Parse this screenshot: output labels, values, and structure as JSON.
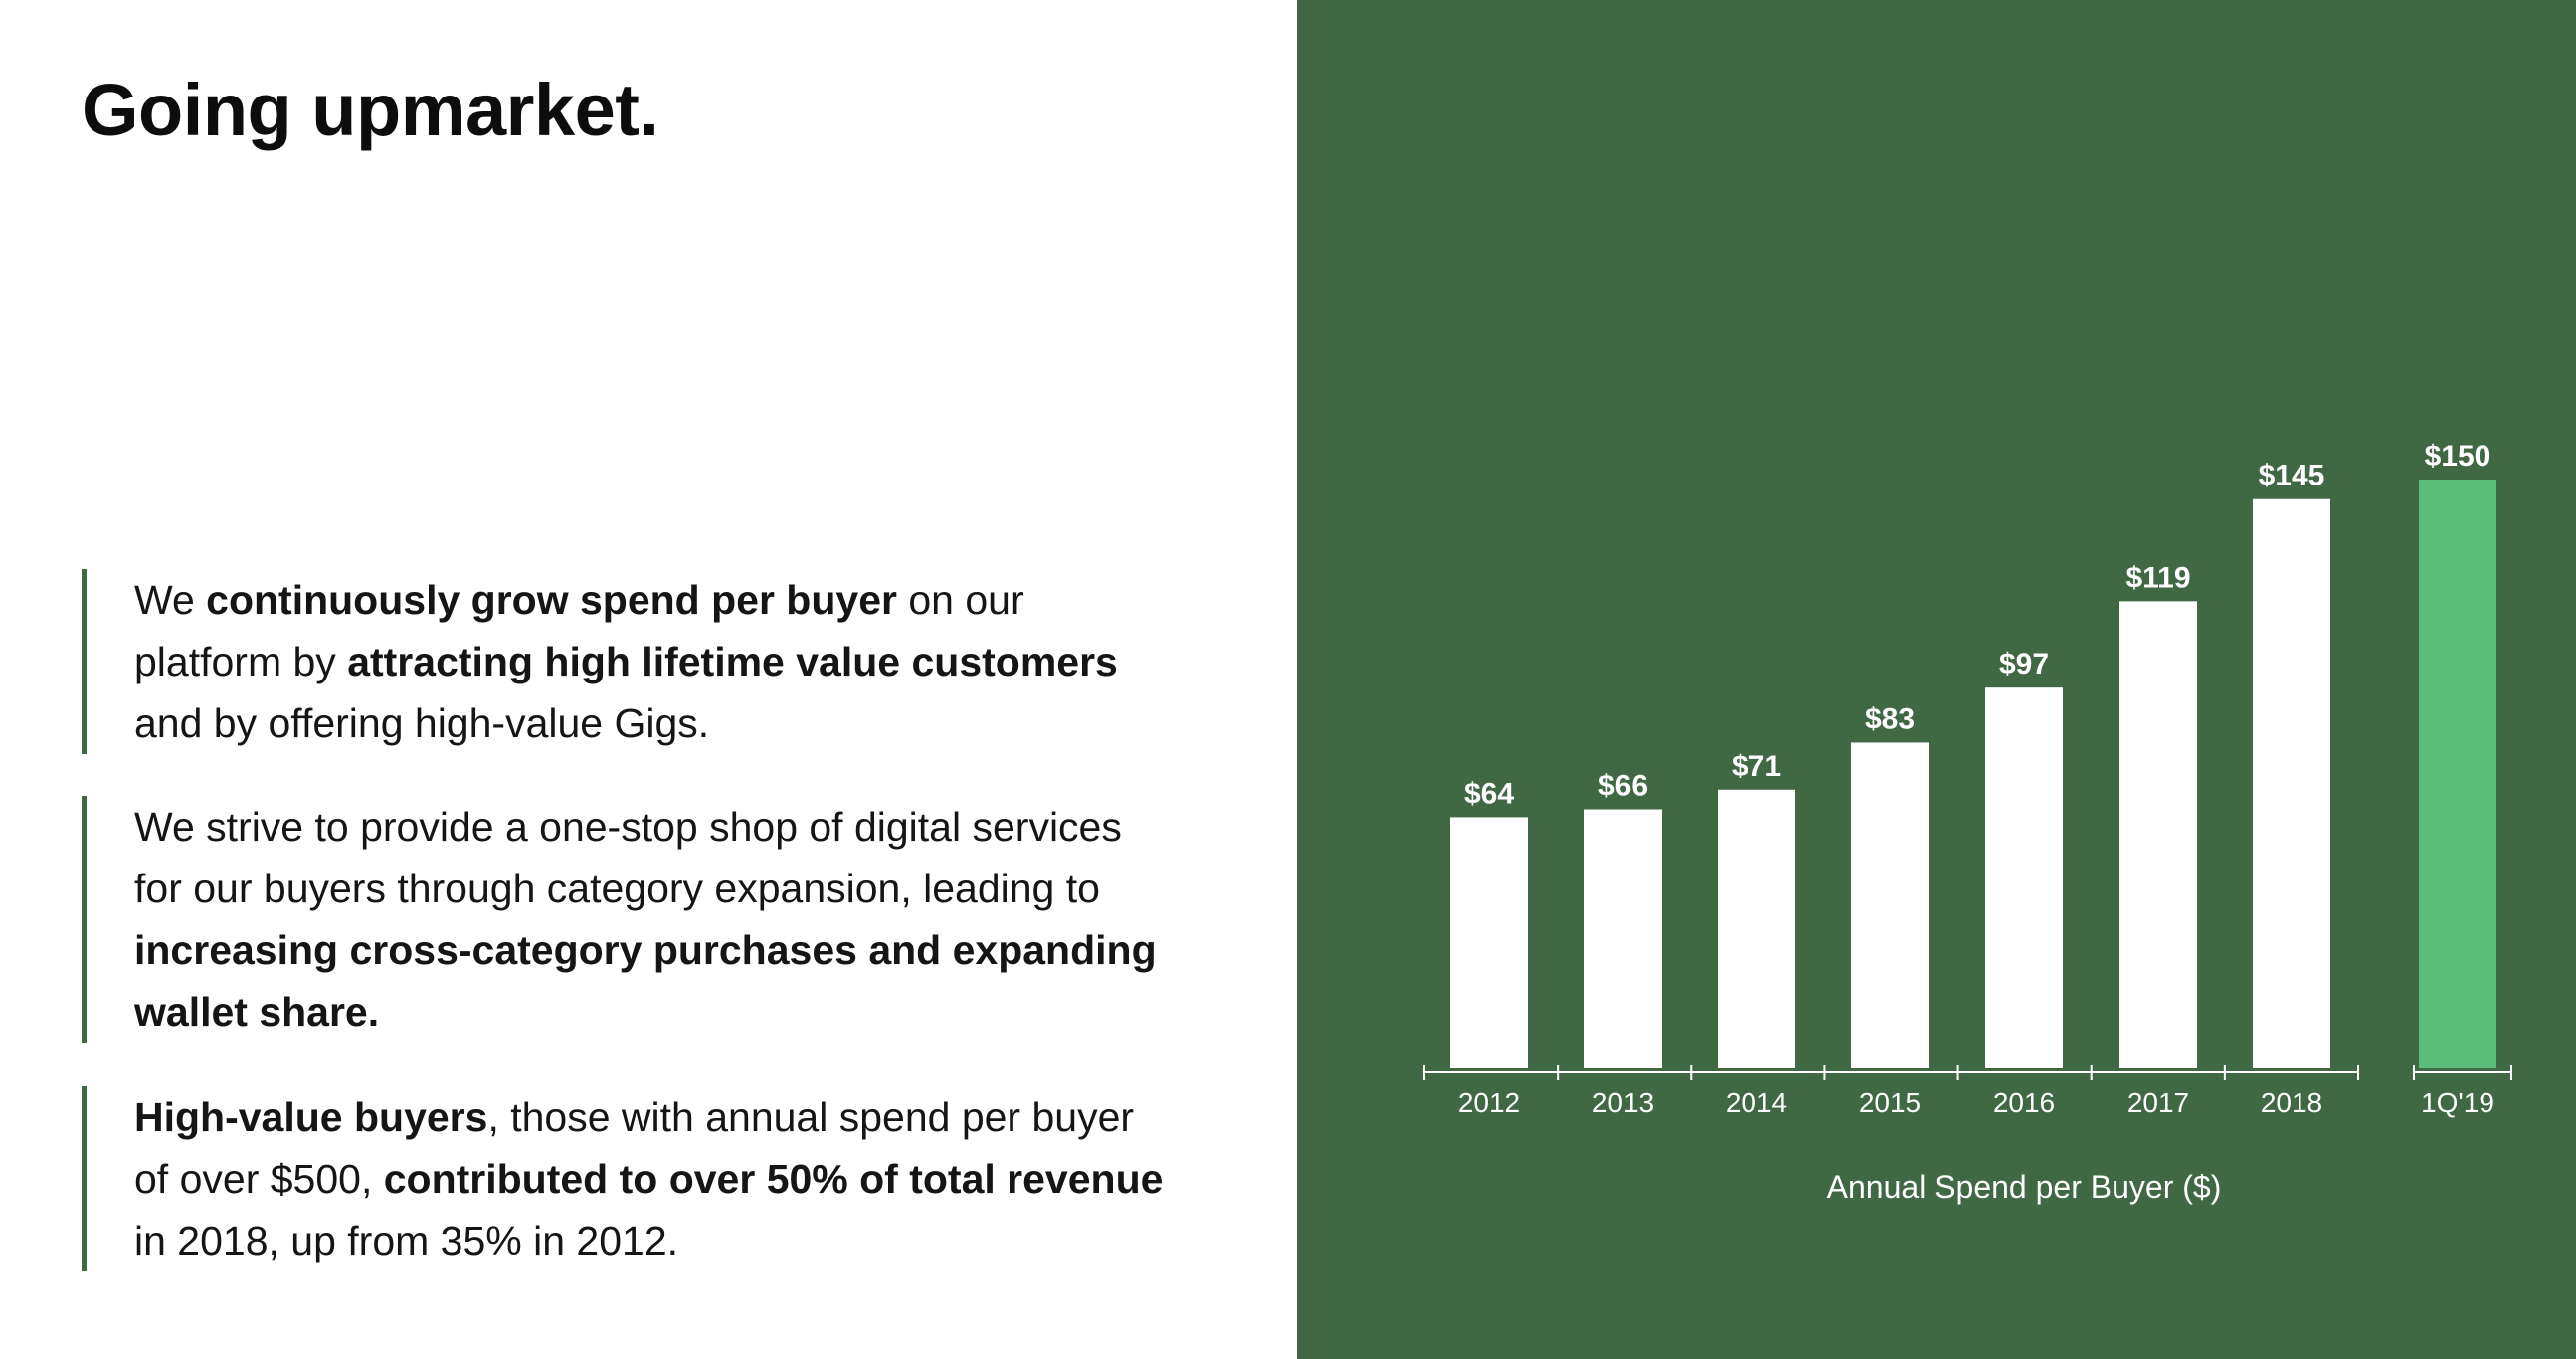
{
  "page": {
    "title": "Going upmarket."
  },
  "callouts": [
    {
      "segments": [
        {
          "text": "We ",
          "bold": false
        },
        {
          "text": "continuously grow spend per buyer",
          "bold": true
        },
        {
          "text": " on our platform by ",
          "bold": false
        },
        {
          "text": "attracting high lifetime value customers",
          "bold": true
        },
        {
          "text": " and by offering high-value Gigs.",
          "bold": false
        }
      ]
    },
    {
      "segments": [
        {
          "text": "We strive to provide a one-stop shop of digital services for our buyers through category expansion, leading to ",
          "bold": false
        },
        {
          "text": "increasing cross-category purchases and expanding wallet share.",
          "bold": true
        }
      ]
    },
    {
      "segments": [
        {
          "text": "High-value buyers",
          "bold": true
        },
        {
          "text": ", those with annual spend per buyer of over $500, ",
          "bold": false
        },
        {
          "text": "contributed to over 50% of total revenue",
          "bold": true
        },
        {
          "text": " in 2018, up from 35% in 2012.",
          "bold": false
        }
      ]
    }
  ],
  "colors": {
    "panel_background": "#406943",
    "bar_default": "#ffffff",
    "bar_highlight": "#5cbd7b",
    "accent_rule": "#3f6944"
  },
  "chart_data": {
    "type": "bar",
    "categories": [
      "2012",
      "2013",
      "2014",
      "2015",
      "2016",
      "2017",
      "2018",
      "1Q'19"
    ],
    "values": [
      64,
      66,
      71,
      83,
      97,
      119,
      145,
      150
    ],
    "value_labels": [
      "$64",
      "$66",
      "$71",
      "$83",
      "$97",
      "$119",
      "$145",
      "$150"
    ],
    "highlighted_category": "1Q'19",
    "title": "",
    "xlabel": "Annual Spend per Buyer ($)",
    "ylabel": "",
    "ylim": [
      0,
      150
    ],
    "grid": false,
    "legend": "none"
  }
}
